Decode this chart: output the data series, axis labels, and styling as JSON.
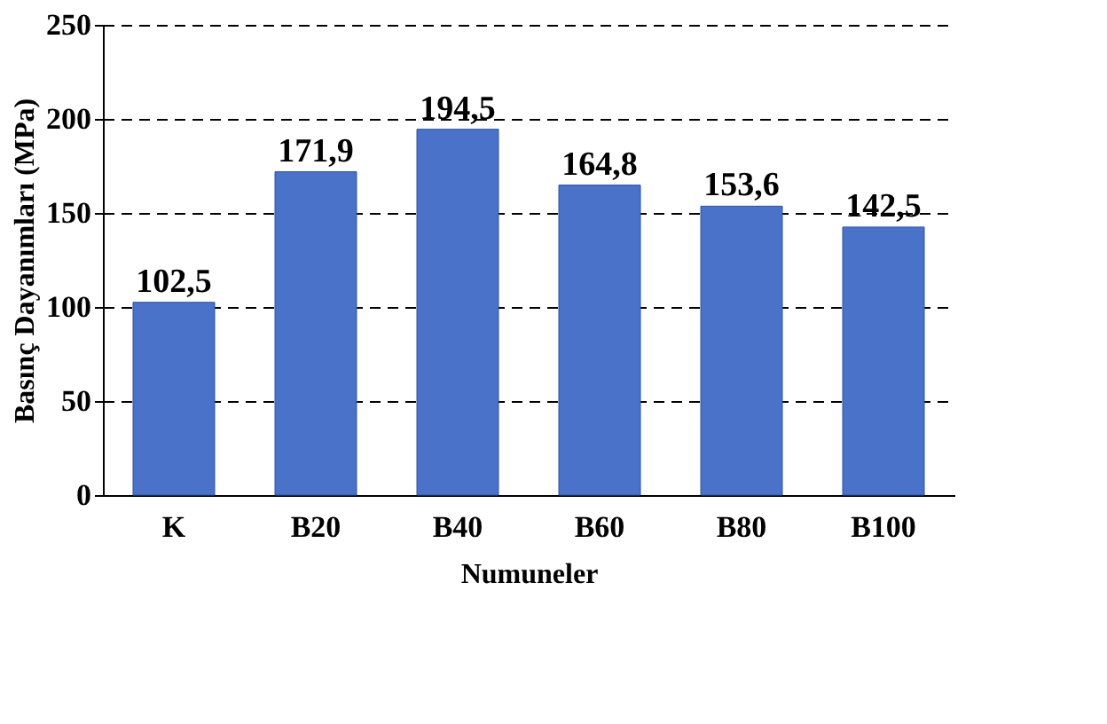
{
  "chart_data": {
    "type": "bar",
    "xlabel": "Numuneler",
    "ylabel": "Basınç Dayanımları (MPa)",
    "categories": [
      "K",
      "B20",
      "B40",
      "B60",
      "B80",
      "B100"
    ],
    "values": [
      102.5,
      171.9,
      194.5,
      164.8,
      153.6,
      142.5
    ],
    "value_labels": [
      "102,5",
      "171,9",
      "194,5",
      "164,8",
      "153,6",
      "142,5"
    ],
    "color": "#4a72c8",
    "ylim": [
      0,
      250
    ],
    "yticks": [
      0,
      50,
      100,
      150,
      200,
      250
    ],
    "grid": "y"
  }
}
